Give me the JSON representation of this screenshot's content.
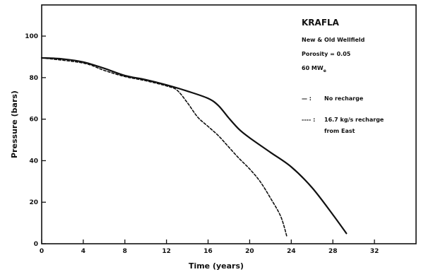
{
  "chart_data": {
    "type": "line",
    "title": "KRAFLA",
    "annotations": [
      "New & Old Wellfield",
      "Porosity = 0.05",
      "60 MW",
      "e"
    ],
    "xlabel": "Time (years)",
    "ylabel": "Pressure (bars)",
    "xlim": [
      0,
      36
    ],
    "ylim": [
      0,
      115
    ],
    "x_ticks": [
      0,
      4,
      8,
      12,
      16,
      20,
      24,
      28,
      32
    ],
    "y_ticks": [
      0,
      20,
      40,
      60,
      80,
      100
    ],
    "grid": false,
    "legend_position": "right",
    "series": [
      {
        "name": "No recharge",
        "style": "solid",
        "color": "#111111",
        "x": [
          0,
          2,
          4,
          6,
          8,
          10,
          12,
          14,
          16,
          17,
          18,
          19,
          20,
          22,
          24,
          26,
          28,
          29.3
        ],
        "y": [
          89.5,
          89,
          87.5,
          84.5,
          81,
          79,
          76.5,
          73.5,
          70,
          66.5,
          60.5,
          55,
          51,
          44,
          37,
          27,
          14,
          5
        ]
      },
      {
        "name": "16.7 kg/s recharge from East",
        "style": "dotted",
        "color": "#111111",
        "x": [
          0,
          4,
          6,
          8,
          10,
          12,
          13,
          14,
          15,
          16,
          17,
          18,
          19,
          20,
          21,
          22,
          23,
          23.6
        ],
        "y": [
          89.5,
          87,
          83.5,
          80.5,
          78.5,
          76,
          74,
          68,
          61,
          56.5,
          52,
          46.5,
          41,
          36,
          30,
          22,
          13,
          3
        ]
      }
    ],
    "legend": [
      {
        "marker": "— :",
        "label": "No recharge"
      },
      {
        "marker": "---- :",
        "label": "16.7 kg/s recharge",
        "label2": "from East"
      }
    ]
  }
}
